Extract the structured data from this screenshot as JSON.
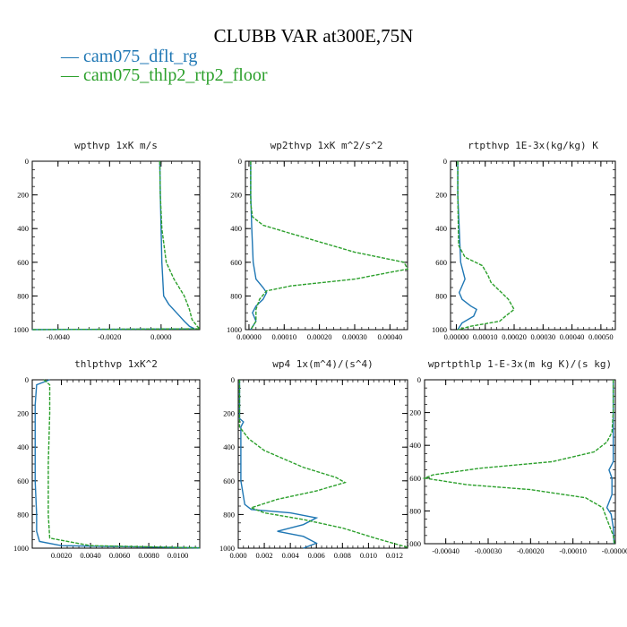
{
  "title": "CLUBB VAR at300E,75N",
  "legend": [
    {
      "label": "cam075_dflt_rg",
      "color": "#1f77b4"
    },
    {
      "label": "cam075_thlp2_rtp2_floor",
      "color": "#2ca02c"
    }
  ],
  "chart_data": [
    {
      "type": "line",
      "title": "wpthvp  1xK m/s",
      "xlim": [
        -0.005,
        0.0015
      ],
      "ylim": [
        1000,
        0
      ],
      "xticks": [
        "-0.0040",
        "-0.0020",
        "0.0000"
      ],
      "xtick_values": [
        -0.004,
        -0.002,
        0.0
      ],
      "yticks": [
        "0",
        "200",
        "400",
        "600",
        "800",
        "1000"
      ],
      "series": [
        {
          "name": "cam075_dflt_rg",
          "color": "#1f77b4",
          "points": [
            [
              -5e-05,
              0
            ],
            [
              -3e-05,
              200
            ],
            [
              0,
              400
            ],
            [
              3e-05,
              600
            ],
            [
              0.0001,
              800
            ],
            [
              0.0003,
              850
            ],
            [
              0.0006,
              900
            ],
            [
              0.0009,
              950
            ],
            [
              0.0011,
              980
            ],
            [
              0.0013,
              995
            ],
            [
              -0.005,
              1000
            ]
          ]
        },
        {
          "name": "cam075_thlp2_rtp2_floor",
          "color": "#2ca02c",
          "points": [
            [
              -5e-05,
              0
            ],
            [
              -3e-05,
              200
            ],
            [
              3e-05,
              400
            ],
            [
              0.0002,
              600
            ],
            [
              0.0005,
              700
            ],
            [
              0.0009,
              800
            ],
            [
              0.0011,
              880
            ],
            [
              0.0012,
              940
            ],
            [
              0.0014,
              980
            ],
            [
              0.0015,
              995
            ],
            [
              -0.005,
              1000
            ]
          ]
        }
      ]
    },
    {
      "type": "line",
      "title": "wp2thvp  1xK m^2/s^2",
      "xlim": [
        -1e-05,
        0.00045
      ],
      "ylim": [
        1000,
        0
      ],
      "xticks": [
        "0.00000",
        "0.00010",
        "0.00020",
        "0.00030",
        "0.00040"
      ],
      "xtick_values": [
        0,
        0.0001,
        0.0002,
        0.0003,
        0.0004
      ],
      "yticks": [
        "0",
        "200",
        "400",
        "600",
        "800",
        "1000"
      ],
      "series": [
        {
          "name": "cam075_dflt_rg",
          "color": "#1f77b4",
          "points": [
            [
              5e-06,
              0
            ],
            [
              5e-06,
              200
            ],
            [
              8e-06,
              400
            ],
            [
              1.2e-05,
              600
            ],
            [
              2e-05,
              700
            ],
            [
              4e-05,
              750
            ],
            [
              5e-05,
              780
            ],
            [
              4e-05,
              820
            ],
            [
              2e-05,
              860
            ],
            [
              1e-05,
              900
            ],
            [
              2e-05,
              950
            ],
            [
              5e-06,
              1000
            ]
          ]
        },
        {
          "name": "cam075_thlp2_rtp2_floor",
          "color": "#2ca02c",
          "points": [
            [
              5e-06,
              0
            ],
            [
              5e-06,
              250
            ],
            [
              1e-05,
              330
            ],
            [
              4e-05,
              380
            ],
            [
              0.00012,
              430
            ],
            [
              0.0003,
              540
            ],
            [
              0.00044,
              600
            ],
            [
              0.00045,
              640
            ],
            [
              0.0003,
              700
            ],
            [
              0.00012,
              740
            ],
            [
              5e-05,
              770
            ],
            [
              3e-05,
              820
            ],
            [
              2e-05,
              880
            ],
            [
              2e-05,
              950
            ],
            [
              5e-06,
              1000
            ]
          ]
        }
      ]
    },
    {
      "type": "line",
      "title": "rtpthvp  1E-3x(kg/kg) K",
      "xlim": [
        -2e-05,
        0.00055
      ],
      "ylim": [
        1000,
        0
      ],
      "xticks": [
        "0.00000",
        "0.00010",
        "0.00020",
        "0.00030",
        "0.00040",
        "0.00050"
      ],
      "xtick_values": [
        0,
        0.0001,
        0.0002,
        0.0003,
        0.0004,
        0.0005
      ],
      "yticks": [
        "0",
        "200",
        "400",
        "600",
        "800",
        "1000"
      ],
      "series": [
        {
          "name": "cam075_dflt_rg",
          "color": "#1f77b4",
          "points": [
            [
              5e-06,
              0
            ],
            [
              5e-06,
              200
            ],
            [
              1e-05,
              400
            ],
            [
              1.5e-05,
              600
            ],
            [
              3e-05,
              700
            ],
            [
              2e-05,
              740
            ],
            [
              1e-05,
              780
            ],
            [
              2e-05,
              820
            ],
            [
              5e-05,
              860
            ],
            [
              7e-05,
              880
            ],
            [
              6e-05,
              920
            ],
            [
              2e-05,
              960
            ],
            [
              5e-06,
              1000
            ]
          ]
        },
        {
          "name": "cam075_thlp2_rtp2_floor",
          "color": "#2ca02c",
          "points": [
            [
              5e-06,
              0
            ],
            [
              5e-06,
              200
            ],
            [
              8e-06,
              500
            ],
            [
              3e-05,
              570
            ],
            [
              9e-05,
              620
            ],
            [
              0.00011,
              680
            ],
            [
              0.00012,
              720
            ],
            [
              0.00015,
              770
            ],
            [
              0.00018,
              820
            ],
            [
              0.0002,
              880
            ],
            [
              0.00017,
              920
            ],
            [
              0.00015,
              950
            ],
            [
              5e-05,
              980
            ],
            [
              5e-06,
              1000
            ]
          ]
        }
      ]
    },
    {
      "type": "line",
      "title": "thlpthvp  1xK^2",
      "xlim": [
        0,
        0.0115
      ],
      "ylim": [
        1000,
        0
      ],
      "xticks": [
        "0.0020",
        "0.0040",
        "0.0060",
        "0.0080",
        "0.0100"
      ],
      "xtick_values": [
        0.002,
        0.004,
        0.006,
        0.008,
        0.01
      ],
      "yticks": [
        "0",
        "200",
        "400",
        "600",
        "800",
        "1000"
      ],
      "series": [
        {
          "name": "cam075_dflt_rg",
          "color": "#1f77b4",
          "points": [
            [
              0.0012,
              0
            ],
            [
              0.0003,
              30
            ],
            [
              0.0002,
              150
            ],
            [
              0.0002,
              400
            ],
            [
              0.0002,
              600
            ],
            [
              0.0003,
              800
            ],
            [
              0.0003,
              900
            ],
            [
              0.0005,
              960
            ],
            [
              0.002,
              985
            ],
            [
              0.0115,
              998
            ]
          ]
        },
        {
          "name": "cam075_thlp2_rtp2_floor",
          "color": "#2ca02c",
          "points": [
            [
              0.0008,
              0
            ],
            [
              0.0012,
              30
            ],
            [
              0.0012,
              200
            ],
            [
              0.0011,
              500
            ],
            [
              0.0011,
              800
            ],
            [
              0.0012,
              940
            ],
            [
              0.004,
              985
            ],
            [
              0.0115,
              998
            ]
          ]
        }
      ]
    },
    {
      "type": "line",
      "title": "wp4  1x(m^4)/(s^4)",
      "xlim": [
        0,
        0.013
      ],
      "ylim": [
        1000,
        0
      ],
      "xticks": [
        "0.000",
        "0.002",
        "0.004",
        "0.006",
        "0.008",
        "0.010",
        "0.012"
      ],
      "xtick_values": [
        0,
        0.002,
        0.004,
        0.006,
        0.008,
        0.01,
        0.012
      ],
      "yticks": [
        "0",
        "200",
        "400",
        "600",
        "800",
        "1000"
      ],
      "series": [
        {
          "name": "cam075_dflt_rg",
          "color": "#1f77b4",
          "points": [
            [
              0.0001,
              0
            ],
            [
              0.0001,
              230
            ],
            [
              0.0004,
              250
            ],
            [
              0.0002,
              280
            ],
            [
              0.0002,
              400
            ],
            [
              0.0002,
              600
            ],
            [
              0.0005,
              740
            ],
            [
              0.001,
              770
            ],
            [
              0.004,
              790
            ],
            [
              0.006,
              820
            ],
            [
              0.005,
              860
            ],
            [
              0.003,
              900
            ],
            [
              0.005,
              930
            ],
            [
              0.006,
              970
            ],
            [
              0.005,
              1000
            ]
          ]
        },
        {
          "name": "cam075_thlp2_rtp2_floor",
          "color": "#2ca02c",
          "points": [
            [
              0.0001,
              0
            ],
            [
              0.0001,
              280
            ],
            [
              0.0008,
              350
            ],
            [
              0.002,
              420
            ],
            [
              0.005,
              520
            ],
            [
              0.0075,
              580
            ],
            [
              0.0082,
              610
            ],
            [
              0.006,
              660
            ],
            [
              0.003,
              710
            ],
            [
              0.001,
              760
            ],
            [
              0.002,
              790
            ],
            [
              0.005,
              830
            ],
            [
              0.008,
              880
            ],
            [
              0.0105,
              940
            ],
            [
              0.013,
              995
            ]
          ]
        }
      ]
    },
    {
      "type": "line",
      "title": "wprtpthlp  1-E-3x(m kg K)/(s kg)",
      "xlim": [
        -0.00045,
        0.0
      ],
      "ylim": [
        1000,
        0
      ],
      "xticks": [
        "-0.00040",
        "-0.00030",
        "-0.00020",
        "-0.00010",
        "-0.00000"
      ],
      "xtick_values": [
        -0.0004,
        -0.0003,
        -0.0002,
        -0.0001,
        0
      ],
      "yticks": [
        "0",
        "200",
        "400",
        "600",
        "800",
        "1000"
      ],
      "series": [
        {
          "name": "cam075_dflt_rg",
          "color": "#1f77b4",
          "points": [
            [
              -5e-06,
              0
            ],
            [
              -5e-06,
              200
            ],
            [
              -5e-06,
              400
            ],
            [
              -5e-06,
              500
            ],
            [
              -1.5e-05,
              550
            ],
            [
              -8e-06,
              600
            ],
            [
              -8e-06,
              700
            ],
            [
              -2e-05,
              780
            ],
            [
              -1e-05,
              820
            ],
            [
              -5e-06,
              900
            ],
            [
              -3e-06,
              1000
            ]
          ]
        },
        {
          "name": "cam075_thlp2_rtp2_floor",
          "color": "#2ca02c",
          "points": [
            [
              -5e-06,
              0
            ],
            [
              -5e-06,
              200
            ],
            [
              -8e-06,
              320
            ],
            [
              -2e-05,
              380
            ],
            [
              -5e-05,
              440
            ],
            [
              -0.00015,
              500
            ],
            [
              -0.00032,
              540
            ],
            [
              -0.00043,
              580
            ],
            [
              -0.00045,
              600
            ],
            [
              -0.00035,
              640
            ],
            [
              -0.0002,
              670
            ],
            [
              -7e-05,
              720
            ],
            [
              -3e-05,
              780
            ],
            [
              -2e-05,
              850
            ],
            [
              -5e-06,
              950
            ],
            [
              -2e-06,
              1000
            ]
          ]
        }
      ]
    }
  ]
}
